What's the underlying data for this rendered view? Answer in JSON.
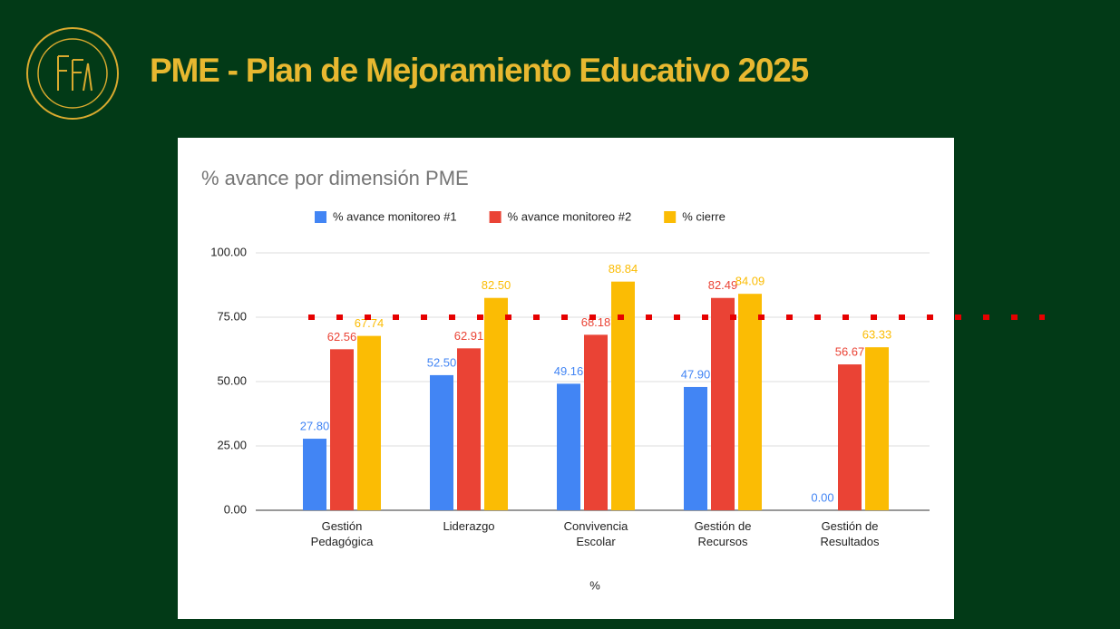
{
  "header": {
    "title": "PME - Plan de Mejoramiento Educativo 2025"
  },
  "chart_data": {
    "type": "bar",
    "title": "% avance por dimensión PME",
    "x_label": "%",
    "categories": [
      "Gestión Pedagógica",
      "Liderazgo",
      "Convivencia Escolar",
      "Gestión de Recursos",
      "Gestión de Resultados"
    ],
    "series": [
      {
        "name": "% avance monitoreo #1",
        "color": "#4285f4",
        "values": [
          27.8,
          52.5,
          49.16,
          47.9,
          0
        ],
        "value_labels": [
          "27.80",
          "52.50",
          "49.16",
          "47.90",
          "0.00"
        ]
      },
      {
        "name": "% avance monitoreo #2",
        "color": "#ea4335",
        "values": [
          62.56,
          62.91,
          68.18,
          82.49,
          56.67
        ],
        "value_labels": [
          "62.56",
          "62.91",
          "68.18",
          "82.49",
          "56.67"
        ]
      },
      {
        "name": "% cierre",
        "color": "#fbbc04",
        "values": [
          67.74,
          82.5,
          88.84,
          84.09,
          63.33
        ],
        "value_labels": [
          "67.74",
          "82.50",
          "88.84",
          "84.09",
          "63.33"
        ]
      }
    ],
    "ylim": [
      0,
      100
    ],
    "yticks": [
      {
        "value": 0,
        "label": "0.00"
      },
      {
        "value": 25,
        "label": "25.00"
      },
      {
        "value": 50,
        "label": "50.00"
      },
      {
        "value": 75,
        "label": "75.00"
      },
      {
        "value": 100,
        "label": "100.00"
      }
    ],
    "grid": true,
    "legend": "top",
    "reference_line": {
      "value": 75,
      "color": "#e60000"
    }
  }
}
